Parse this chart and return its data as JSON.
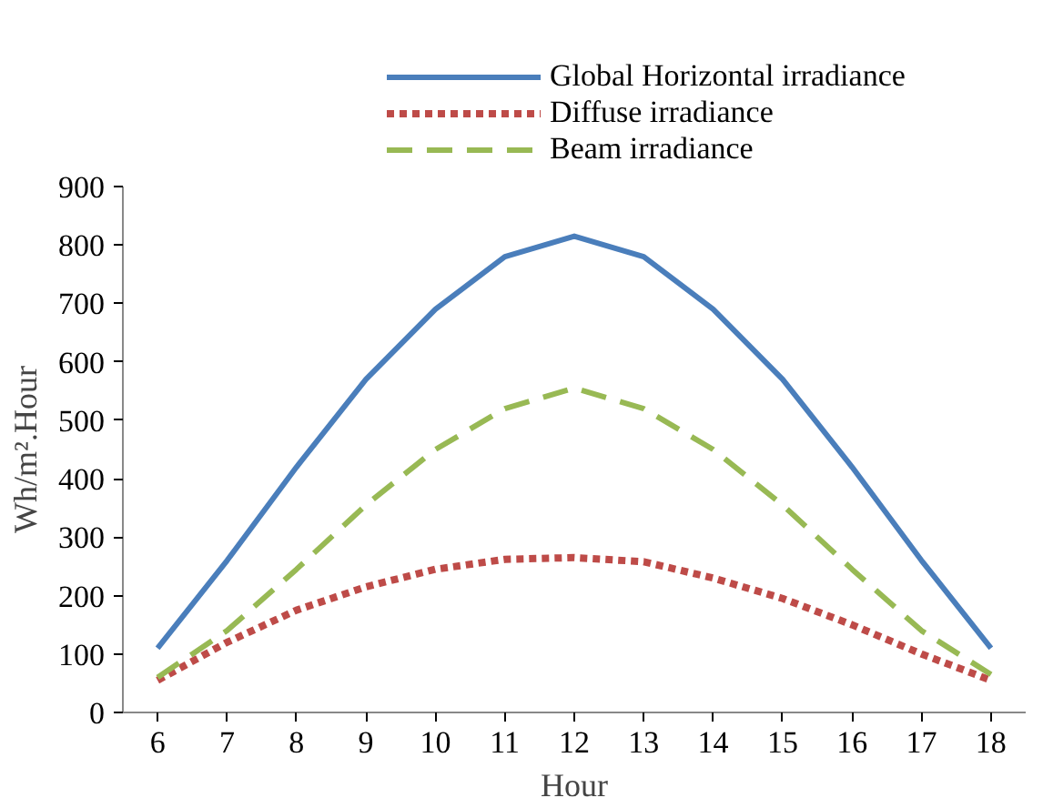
{
  "chart_data": {
    "type": "line",
    "xlabel": "Hour",
    "ylabel": "Wh/m².Hour",
    "x": [
      6,
      7,
      8,
      9,
      10,
      11,
      12,
      13,
      14,
      15,
      16,
      17,
      18
    ],
    "xlim": [
      5.5,
      18.5
    ],
    "xticks": [
      6,
      7,
      8,
      9,
      10,
      11,
      12,
      13,
      14,
      15,
      16,
      17,
      18
    ],
    "ylim": [
      0,
      900
    ],
    "yticks": [
      0,
      100,
      200,
      300,
      400,
      500,
      600,
      700,
      800,
      900
    ],
    "grid": false,
    "legend": "top",
    "series": [
      {
        "name": "Global Horizontal irradiance",
        "color": "#4a7ebb",
        "line_style": "solid",
        "values": [
          110,
          260,
          420,
          570,
          690,
          780,
          815,
          780,
          690,
          570,
          420,
          260,
          110
        ]
      },
      {
        "name": "Diffuse irradiance",
        "color": "#be4b48",
        "line_style": "dotted",
        "values": [
          55,
          120,
          175,
          215,
          245,
          262,
          265,
          258,
          230,
          195,
          150,
          100,
          55
        ]
      },
      {
        "name": "Beam irradiance",
        "color": "#98b954",
        "line_style": "dashed",
        "values": [
          60,
          140,
          245,
          355,
          450,
          520,
          555,
          520,
          450,
          355,
          245,
          140,
          65
        ]
      }
    ]
  }
}
